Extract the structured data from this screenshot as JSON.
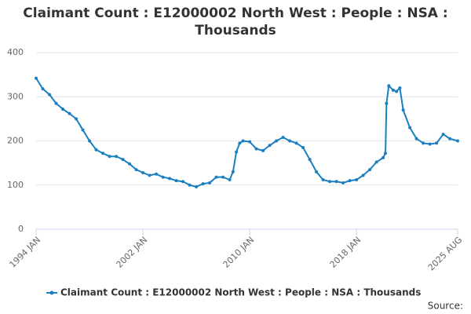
{
  "chart_data": {
    "type": "line",
    "title": "Claimant Count : E12000002 North West : People : NSA : Thousands",
    "source_label": "Source:",
    "x": [
      1994.0,
      1994.5,
      1995.0,
      1995.5,
      1996.0,
      1996.5,
      1997.0,
      1997.5,
      1998.0,
      1998.5,
      1999.0,
      1999.5,
      2000.0,
      2000.5,
      2001.0,
      2001.5,
      2002.0,
      2002.5,
      2003.0,
      2003.5,
      2004.0,
      2004.5,
      2005.0,
      2005.5,
      2006.0,
      2006.5,
      2007.0,
      2007.5,
      2008.0,
      2008.5,
      2008.75,
      2009.0,
      2009.25,
      2009.5,
      2010.0,
      2010.5,
      2011.0,
      2011.5,
      2012.0,
      2012.5,
      2013.0,
      2013.5,
      2014.0,
      2014.5,
      2015.0,
      2015.5,
      2016.0,
      2016.5,
      2017.0,
      2017.5,
      2018.0,
      2018.5,
      2019.0,
      2019.5,
      2020.0,
      2020.17,
      2020.25,
      2020.42,
      2020.75,
      2021.0,
      2021.25,
      2021.5,
      2022.0,
      2022.5,
      2023.0,
      2023.5,
      2024.0,
      2024.5,
      2025.0,
      2025.58
    ],
    "series": [
      {
        "name": "Claimant Count : E12000002 North West : People : NSA : Thousands",
        "color": "#1a7fc1",
        "values": [
          342,
          318,
          305,
          285,
          272,
          262,
          250,
          225,
          200,
          180,
          172,
          165,
          165,
          158,
          148,
          135,
          128,
          122,
          125,
          118,
          115,
          110,
          108,
          100,
          96,
          103,
          105,
          118,
          118,
          112,
          130,
          175,
          195,
          200,
          198,
          182,
          178,
          190,
          200,
          208,
          200,
          195,
          185,
          158,
          130,
          112,
          108,
          108,
          105,
          110,
          112,
          122,
          135,
          152,
          162,
          172,
          285,
          325,
          315,
          312,
          320,
          270,
          230,
          205,
          195,
          193,
          195,
          215,
          205,
          200
        ]
      }
    ],
    "xlim": [
      1994.0,
      2025.58
    ],
    "xticks": [
      {
        "value": 1994.0,
        "label": "1994 JAN"
      },
      {
        "value": 2002.0,
        "label": "2002 JAN"
      },
      {
        "value": 2010.0,
        "label": "2010 JAN"
      },
      {
        "value": 2018.0,
        "label": "2018 JAN"
      },
      {
        "value": 2025.58,
        "label": "2025 AUG"
      }
    ],
    "ylim": [
      0,
      400
    ],
    "yticks": [
      0,
      100,
      200,
      300,
      400
    ],
    "grid": true
  }
}
